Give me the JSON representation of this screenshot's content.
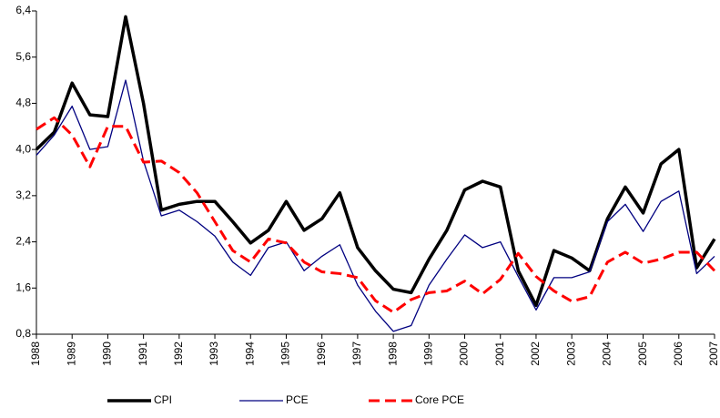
{
  "chart_data": {
    "type": "line",
    "x": [
      1988,
      1988.5,
      1989,
      1989.5,
      1990,
      1990.5,
      1991,
      1991.5,
      1992,
      1992.5,
      1993,
      1993.5,
      1994,
      1994.5,
      1995,
      1995.5,
      1996,
      1996.5,
      1997,
      1997.5,
      1998,
      1998.5,
      1999,
      1999.5,
      2000,
      2000.5,
      2001,
      2001.5,
      2002,
      2002.5,
      2003,
      2003.5,
      2004,
      2004.5,
      2005,
      2005.5,
      2006,
      2006.5,
      2007
    ],
    "series": [
      {
        "name": "CPI",
        "color": "#000000",
        "line_style": "solid",
        "line_width": 3.5,
        "values": [
          4.0,
          4.3,
          5.15,
          4.6,
          4.57,
          6.3,
          4.8,
          2.95,
          3.05,
          3.1,
          3.1,
          2.75,
          2.38,
          2.6,
          3.1,
          2.6,
          2.8,
          3.25,
          2.3,
          1.9,
          1.58,
          1.52,
          2.1,
          2.6,
          3.3,
          3.45,
          3.35,
          1.9,
          1.3,
          2.25,
          2.12,
          1.9,
          2.8,
          3.35,
          2.9,
          3.75,
          4.0,
          1.95,
          2.45
        ]
      },
      {
        "name": "PCE",
        "color": "#000080",
        "line_style": "solid",
        "line_width": 1.3,
        "values": [
          3.9,
          4.25,
          4.75,
          4.0,
          4.05,
          5.2,
          3.8,
          2.85,
          2.95,
          2.75,
          2.5,
          2.05,
          1.82,
          2.3,
          2.4,
          1.9,
          2.15,
          2.35,
          1.65,
          1.2,
          0.85,
          0.95,
          1.65,
          2.1,
          2.52,
          2.3,
          2.4,
          1.8,
          1.22,
          1.78,
          1.78,
          1.88,
          2.75,
          3.05,
          2.58,
          3.1,
          3.28,
          1.85,
          2.15
        ]
      },
      {
        "name": "Core PCE",
        "color": "#ff0000",
        "line_style": "dashed",
        "line_width": 3,
        "values": [
          4.35,
          4.55,
          4.25,
          3.7,
          4.4,
          4.4,
          3.78,
          3.8,
          3.6,
          3.25,
          2.75,
          2.25,
          2.05,
          2.45,
          2.38,
          2.05,
          1.88,
          1.85,
          1.78,
          1.38,
          1.18,
          1.4,
          1.52,
          1.55,
          1.72,
          1.5,
          1.75,
          2.2,
          1.8,
          1.55,
          1.37,
          1.45,
          2.05,
          2.22,
          2.03,
          2.1,
          2.22,
          2.22,
          1.9
        ]
      }
    ],
    "xlim": [
      1988,
      2007
    ],
    "xticks": [
      1988,
      1989,
      1990,
      1991,
      1992,
      1993,
      1994,
      1995,
      1996,
      1997,
      1998,
      1999,
      2000,
      2001,
      2002,
      2003,
      2004,
      2005,
      2006,
      2007
    ],
    "ylim": [
      0.8,
      6.4
    ],
    "yticks": [
      {
        "value": 0.8,
        "label": "0,8"
      },
      {
        "value": 1.6,
        "label": "1,6"
      },
      {
        "value": 2.4,
        "label": "2,4"
      },
      {
        "value": 3.2,
        "label": "3,2"
      },
      {
        "value": 4.0,
        "label": "4,0"
      },
      {
        "value": 4.8,
        "label": "4,8"
      },
      {
        "value": 5.6,
        "label": "5,6"
      },
      {
        "value": 6.4,
        "label": "6,4"
      }
    ],
    "grid": false,
    "legend": "bottom"
  }
}
